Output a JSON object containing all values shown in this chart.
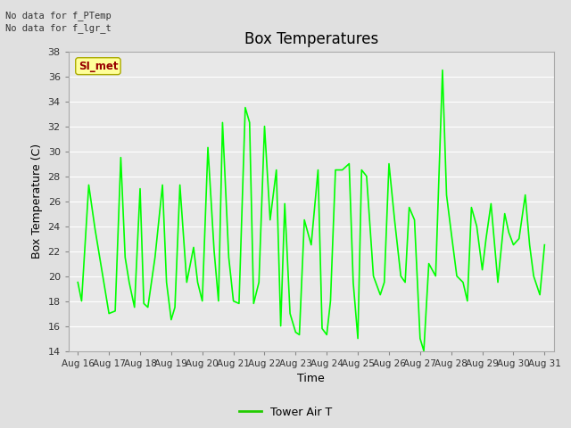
{
  "title": "Box Temperatures",
  "xlabel": "Time",
  "ylabel": "Box Temperature (C)",
  "text_no_data_1": "No data for f_PTemp",
  "text_no_data_2": "No data for f_lgr_t",
  "si_met_label": "SI_met",
  "legend_label": "Tower Air T",
  "ylim": [
    14,
    38
  ],
  "yticks": [
    14,
    16,
    18,
    20,
    22,
    24,
    26,
    28,
    30,
    32,
    34,
    36,
    38
  ],
  "x_labels": [
    "Aug 16",
    "Aug 17",
    "Aug 18",
    "Aug 19",
    "Aug 20",
    "Aug 21",
    "Aug 22",
    "Aug 23",
    "Aug 24",
    "Aug 25",
    "Aug 26",
    "Aug 27",
    "Aug 28",
    "Aug 29",
    "Aug 30",
    "Aug 31"
  ],
  "line_color": "#00ff00",
  "line_color_legend": "#22cc00",
  "bg_color": "#e0e0e0",
  "plot_bg_color": "#e8e8e8",
  "si_met_fill": "#ffff99",
  "si_met_text_color": "#990000",
  "si_met_border": "#aaaa00",
  "x_values": [
    0,
    0.12,
    0.35,
    0.55,
    1.0,
    1.2,
    1.38,
    1.52,
    1.65,
    1.82,
    2.0,
    2.12,
    2.25,
    2.48,
    2.72,
    2.85,
    3.0,
    3.12,
    3.28,
    3.5,
    3.72,
    3.85,
    4.0,
    4.18,
    4.38,
    4.52,
    4.65,
    4.85,
    5.0,
    5.18,
    5.38,
    5.52,
    5.65,
    5.82,
    6.0,
    6.18,
    6.38,
    6.52,
    6.65,
    6.82,
    7.0,
    7.12,
    7.28,
    7.5,
    7.72,
    7.85,
    8.0,
    8.12,
    8.28,
    8.5,
    8.72,
    8.85,
    9.0,
    9.12,
    9.28,
    9.5,
    9.72,
    9.85,
    10.0,
    10.18,
    10.38,
    10.52,
    10.65,
    10.82,
    11.0,
    11.12,
    11.28,
    11.5,
    11.72,
    11.85,
    12.0,
    12.18,
    12.38,
    12.52,
    12.65,
    12.82,
    13.0,
    13.12,
    13.28,
    13.5,
    13.72,
    13.85,
    14.0,
    14.18,
    14.38,
    14.52,
    14.65,
    14.85,
    15.0
  ],
  "y_values": [
    19.5,
    18.0,
    27.3,
    23.8,
    17.0,
    17.2,
    29.5,
    21.5,
    19.5,
    17.5,
    27.0,
    17.8,
    17.5,
    21.5,
    27.3,
    19.5,
    16.5,
    17.5,
    27.3,
    19.5,
    22.3,
    19.5,
    18.0,
    30.3,
    22.0,
    18.0,
    32.3,
    21.5,
    18.0,
    17.8,
    33.5,
    32.3,
    17.8,
    19.5,
    32.0,
    24.5,
    28.5,
    16.0,
    25.8,
    17.0,
    15.5,
    15.3,
    24.5,
    22.5,
    28.5,
    15.8,
    15.3,
    18.0,
    28.5,
    28.5,
    29.0,
    19.5,
    15.0,
    28.5,
    28.0,
    20.0,
    18.5,
    19.5,
    29.0,
    24.5,
    20.0,
    19.5,
    25.5,
    24.5,
    15.0,
    14.0,
    21.0,
    20.0,
    36.5,
    26.5,
    23.5,
    20.0,
    19.5,
    18.0,
    25.5,
    24.0,
    20.5,
    23.0,
    25.8,
    19.5,
    25.0,
    23.5,
    22.5,
    23.0,
    26.5,
    22.5,
    20.0,
    18.5,
    22.5
  ]
}
